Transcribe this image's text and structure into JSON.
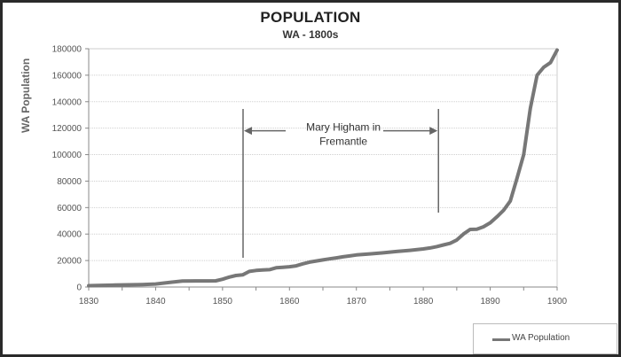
{
  "chart_data": {
    "type": "line",
    "title": "POPULATION",
    "subtitle": "WA  - 1800s",
    "xlabel": "",
    "ylabel": "WA Population",
    "xlim": [
      1830,
      1900
    ],
    "ylim": [
      0,
      180000
    ],
    "x_ticks": [
      1830,
      1840,
      1850,
      1860,
      1870,
      1880,
      1890,
      1900
    ],
    "y_ticks": [
      0,
      20000,
      40000,
      60000,
      80000,
      100000,
      120000,
      140000,
      160000,
      180000
    ],
    "grid": "horizontal",
    "legend_position": "bottom-right",
    "series": [
      {
        "name": "WA Population",
        "color": "#777777",
        "x": [
          1830,
          1832,
          1834,
          1836,
          1838,
          1840,
          1842,
          1844,
          1846,
          1848,
          1849,
          1850,
          1851,
          1852,
          1853,
          1854,
          1855,
          1856,
          1857,
          1858,
          1859,
          1860,
          1861,
          1862,
          1863,
          1864,
          1865,
          1866,
          1867,
          1868,
          1869,
          1870,
          1872,
          1874,
          1876,
          1878,
          1880,
          1881,
          1882,
          1883,
          1884,
          1885,
          1886,
          1887,
          1888,
          1889,
          1890,
          1891,
          1892,
          1893,
          1894,
          1895,
          1896,
          1897,
          1898,
          1899,
          1900
        ],
        "values": [
          1000,
          1300,
          1500,
          1700,
          1900,
          2300,
          3400,
          4500,
          4600,
          4600,
          4700,
          5900,
          7500,
          8700,
          9200,
          11800,
          12500,
          12900,
          13100,
          14500,
          14900,
          15300,
          16000,
          17500,
          18800,
          19700,
          20500,
          21300,
          22000,
          22800,
          23500,
          24200,
          25000,
          25800,
          26800,
          27700,
          28800,
          29500,
          30500,
          31800,
          33000,
          35500,
          40000,
          43500,
          43600,
          45500,
          48500,
          53000,
          58000,
          65000,
          82000,
          100000,
          135000,
          160000,
          166000,
          169500,
          179000
        ]
      }
    ],
    "annotations": [
      {
        "text": "Mary Higham in Fremantle",
        "type": "bracket-arrow",
        "x_start": 1853,
        "x_end": 1882,
        "y_arrow": 120000
      }
    ]
  },
  "labels": {
    "title": "POPULATION",
    "subtitle": "WA  - 1800s",
    "ylabel": "WA Population",
    "annotation_line1": "Mary Higham in",
    "annotation_line2": "Fremantle",
    "legend_label": "WA Population"
  }
}
